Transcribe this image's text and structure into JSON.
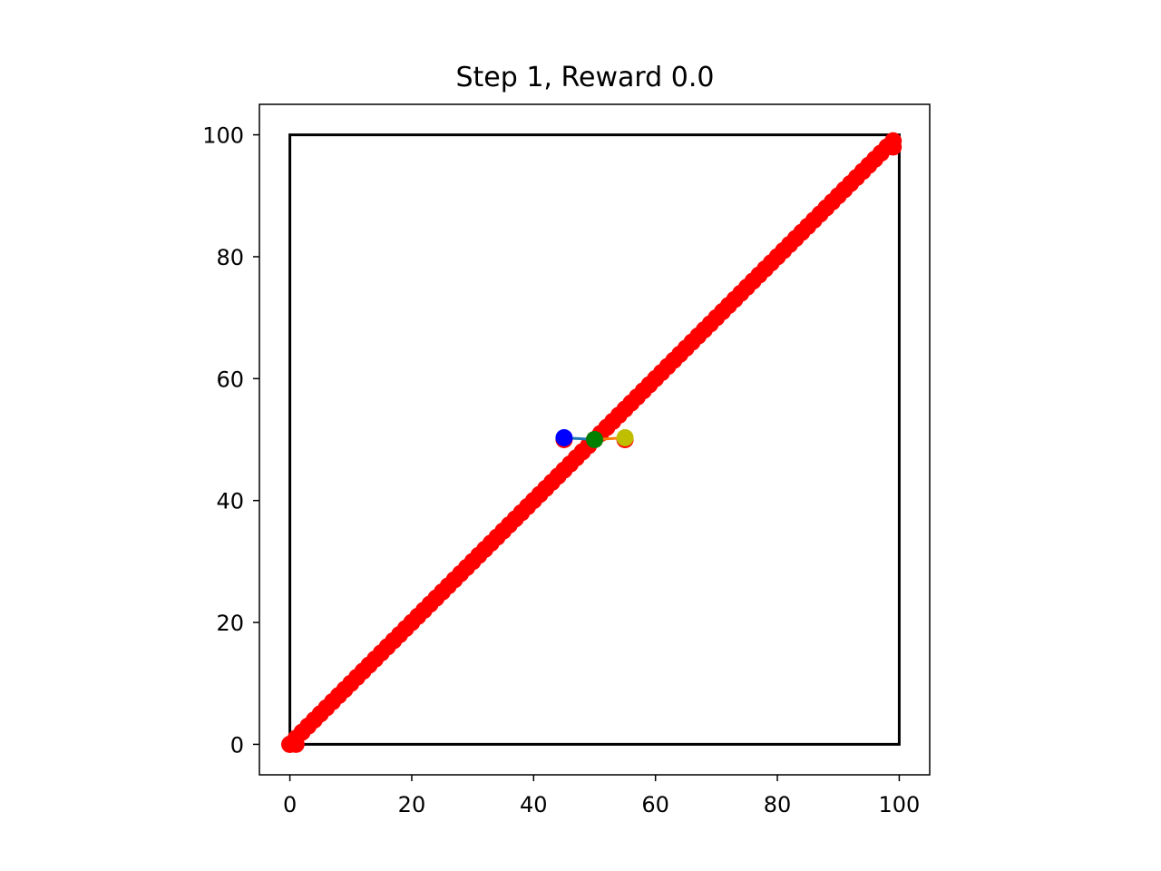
{
  "chart_data": {
    "type": "scatter",
    "title": "Step 1, Reward 0.0",
    "xlabel": "",
    "ylabel": "",
    "xlim": [
      -5,
      105
    ],
    "ylim": [
      -5,
      105
    ],
    "xticks": [
      0,
      20,
      40,
      60,
      80,
      100
    ],
    "yticks": [
      0,
      20,
      40,
      60,
      80,
      100
    ],
    "grid": false,
    "boundary": {
      "x": [
        0,
        100,
        100,
        0,
        0
      ],
      "y": [
        0,
        0,
        100,
        100,
        0
      ],
      "color": "#000000"
    },
    "diagonal_points": {
      "x_start": 0,
      "x_end": 99,
      "step": 1,
      "color": "#ff0000"
    },
    "extra_red_points": {
      "x": [
        0,
        1,
        45,
        55,
        99
      ],
      "y": [
        0,
        0,
        50,
        50,
        98
      ],
      "color": "#ff0000"
    },
    "links": [
      {
        "x": [
          45,
          50
        ],
        "y": [
          50.3,
          50.0
        ],
        "color": "#1f77b4"
      },
      {
        "x": [
          50,
          55
        ],
        "y": [
          50.0,
          50.3
        ],
        "color": "#ff7f0e"
      }
    ],
    "agents": [
      {
        "x": 45,
        "y": 50.3,
        "color": "#0000ff"
      },
      {
        "x": 50,
        "y": 50.0,
        "color": "#008000"
      },
      {
        "x": 55,
        "y": 50.3,
        "color": "#bfbf00"
      }
    ]
  }
}
